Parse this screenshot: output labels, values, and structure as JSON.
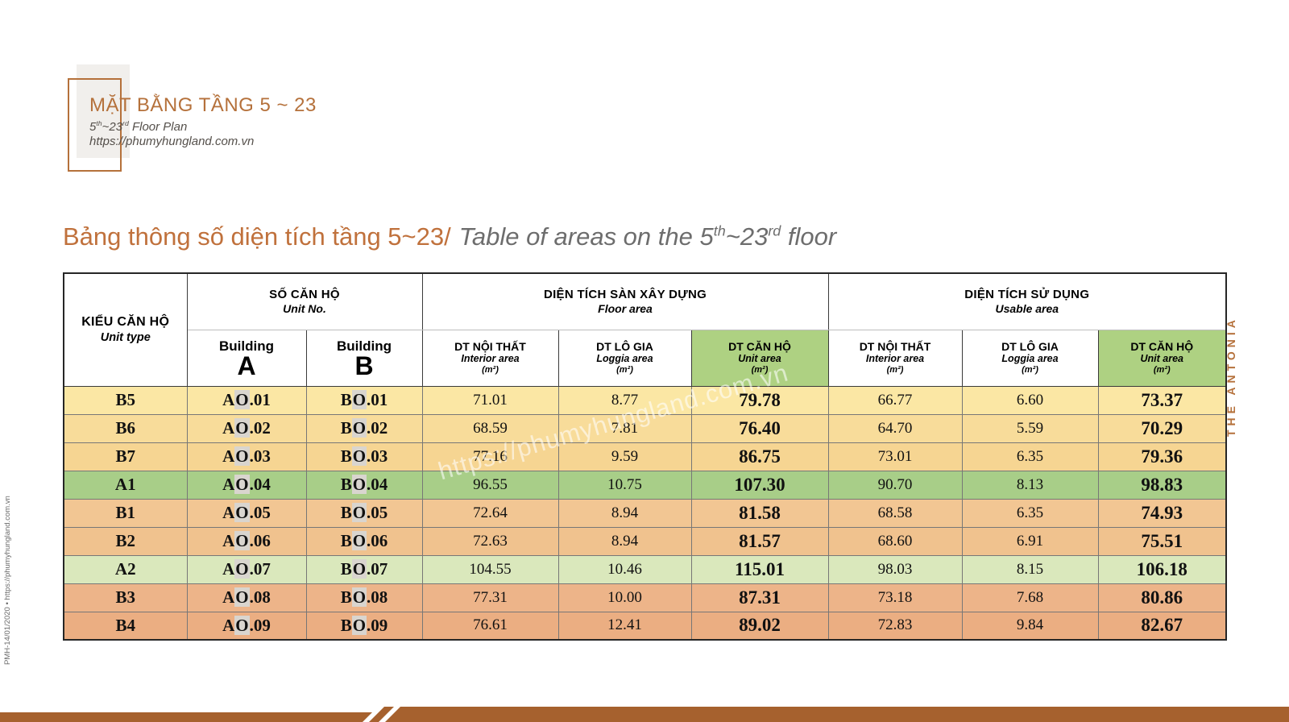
{
  "logo": {
    "title": "MẶT BẰNG TẦNG 5 ~ 23",
    "floor_plan": {
      "pre": "5",
      "sup1": "th",
      "mid": "~23",
      "sup2": "rd",
      "post": " Floor Plan"
    },
    "url": "https://phumyhungland.com.vn"
  },
  "heading": {
    "vi": "Bảng thông số diện tích tầng 5~23/",
    "en": {
      "pre": "Table of areas on the 5",
      "sup1": "th",
      "mid": "~23",
      "sup2": "rd",
      "post": " floor"
    }
  },
  "side": {
    "right_vertical": "THE ANTONIA",
    "left_vertical": "PMH-14/01/2020 • https://phumyhungland.com.vn"
  },
  "watermark": "https://phumyhungland.com.vn",
  "colors": {
    "accent_brown": "#b5713b",
    "heading_brown": "#c0713c",
    "bar_brown": "#a6612e",
    "header_green": "#aed182",
    "gray_text": "#6d6d6d"
  },
  "table": {
    "unit_type_header": {
      "vi": "KIỂU CĂN HỘ",
      "en": "Unit type"
    },
    "groups": [
      {
        "vi": "SỐ CĂN HỘ",
        "en": "Unit No."
      },
      {
        "vi": "DIỆN TÍCH SÀN XÂY DỰNG",
        "en": "Floor area"
      },
      {
        "vi": "DIỆN TÍCH SỬ DỤNG",
        "en": "Usable area"
      }
    ],
    "sub": {
      "building": "Building",
      "building_a": "A",
      "building_b": "B",
      "interior": {
        "vi": "DT NỘI THẤT",
        "en": "Interior area",
        "unit": "(m²)"
      },
      "loggia": {
        "vi": "DT LÔ GIA",
        "en": "Loggia area",
        "unit": "(m²)"
      },
      "unit_area": {
        "vi": "DT CĂN HỘ",
        "en": "Unit area",
        "unit": "(m²)"
      }
    },
    "rows": [
      {
        "type": "B5",
        "color": "#fbe7a4",
        "a": "AO.01",
        "b": "BO.01",
        "values": [
          "71.01",
          "8.77",
          "79.78",
          "66.77",
          "6.60",
          "73.37"
        ]
      },
      {
        "type": "B6",
        "color": "#f8dc9a",
        "a": "AO.02",
        "b": "BO.02",
        "values": [
          "68.59",
          "7.81",
          "76.40",
          "64.70",
          "5.59",
          "70.29"
        ]
      },
      {
        "type": "B7",
        "color": "#f6d592",
        "a": "AO.03",
        "b": "BO.03",
        "values": [
          "77.16",
          "9.59",
          "86.75",
          "73.01",
          "6.35",
          "79.36"
        ]
      },
      {
        "type": "A1",
        "color": "#a8ce88",
        "a": "AO.04",
        "b": "BO.04",
        "values": [
          "96.55",
          "10.75",
          "107.30",
          "90.70",
          "8.13",
          "98.83"
        ]
      },
      {
        "type": "B1",
        "color": "#f2c693",
        "a": "AO.05",
        "b": "BO.05",
        "values": [
          "72.64",
          "8.94",
          "81.58",
          "68.58",
          "6.35",
          "74.93"
        ]
      },
      {
        "type": "B2",
        "color": "#f0c28e",
        "a": "AO.06",
        "b": "BO.06",
        "values": [
          "72.63",
          "8.94",
          "81.57",
          "68.60",
          "6.91",
          "75.51"
        ]
      },
      {
        "type": "A2",
        "color": "#dae8bc",
        "a": "AO.07",
        "b": "BO.07",
        "values": [
          "104.55",
          "10.46",
          "115.01",
          "98.03",
          "8.15",
          "106.18"
        ]
      },
      {
        "type": "B3",
        "color": "#edb489",
        "a": "AO.08",
        "b": "BO.08",
        "values": [
          "77.31",
          "10.00",
          "87.31",
          "73.18",
          "7.68",
          "80.86"
        ]
      },
      {
        "type": "B4",
        "color": "#ebae82",
        "a": "AO.09",
        "b": "BO.09",
        "values": [
          "76.61",
          "12.41",
          "89.02",
          "72.83",
          "9.84",
          "82.67"
        ]
      }
    ]
  }
}
